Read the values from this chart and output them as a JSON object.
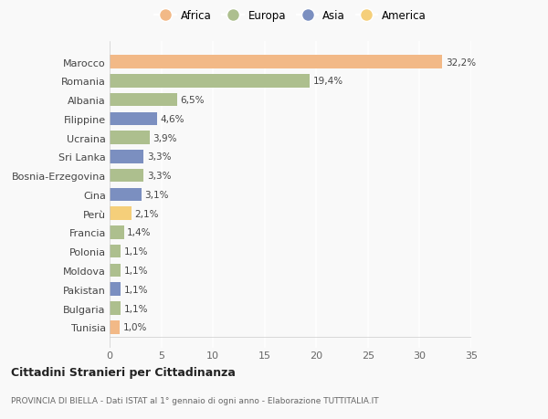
{
  "categories": [
    "Marocco",
    "Romania",
    "Albania",
    "Filippine",
    "Ucraina",
    "Sri Lanka",
    "Bosnia-Erzegovina",
    "Cina",
    "Perù",
    "Francia",
    "Polonia",
    "Moldova",
    "Pakistan",
    "Bulgaria",
    "Tunisia"
  ],
  "values": [
    32.2,
    19.4,
    6.5,
    4.6,
    3.9,
    3.3,
    3.3,
    3.1,
    2.1,
    1.4,
    1.1,
    1.1,
    1.1,
    1.1,
    1.0
  ],
  "labels": [
    "32,2%",
    "19,4%",
    "6,5%",
    "4,6%",
    "3,9%",
    "3,3%",
    "3,3%",
    "3,1%",
    "2,1%",
    "1,4%",
    "1,1%",
    "1,1%",
    "1,1%",
    "1,1%",
    "1,0%"
  ],
  "colors": [
    "#F2B987",
    "#ADBF8E",
    "#ADBF8E",
    "#7B8FC0",
    "#ADBF8E",
    "#7B8FC0",
    "#ADBF8E",
    "#7B8FC0",
    "#F5CF7A",
    "#ADBF8E",
    "#ADBF8E",
    "#ADBF8E",
    "#7B8FC0",
    "#ADBF8E",
    "#F2B987"
  ],
  "legend_labels": [
    "Africa",
    "Europa",
    "Asia",
    "America"
  ],
  "legend_colors": [
    "#F2B987",
    "#ADBF8E",
    "#7B8FC0",
    "#F5CF7A"
  ],
  "title": "Cittadini Stranieri per Cittadinanza",
  "subtitle": "PROVINCIA DI BIELLA - Dati ISTAT al 1° gennaio di ogni anno - Elaborazione TUTTITALIA.IT",
  "xlim": [
    0,
    35
  ],
  "xticks": [
    0,
    5,
    10,
    15,
    20,
    25,
    30,
    35
  ],
  "background_color": "#f9f9f9",
  "grid_color": "#e0e0e0"
}
